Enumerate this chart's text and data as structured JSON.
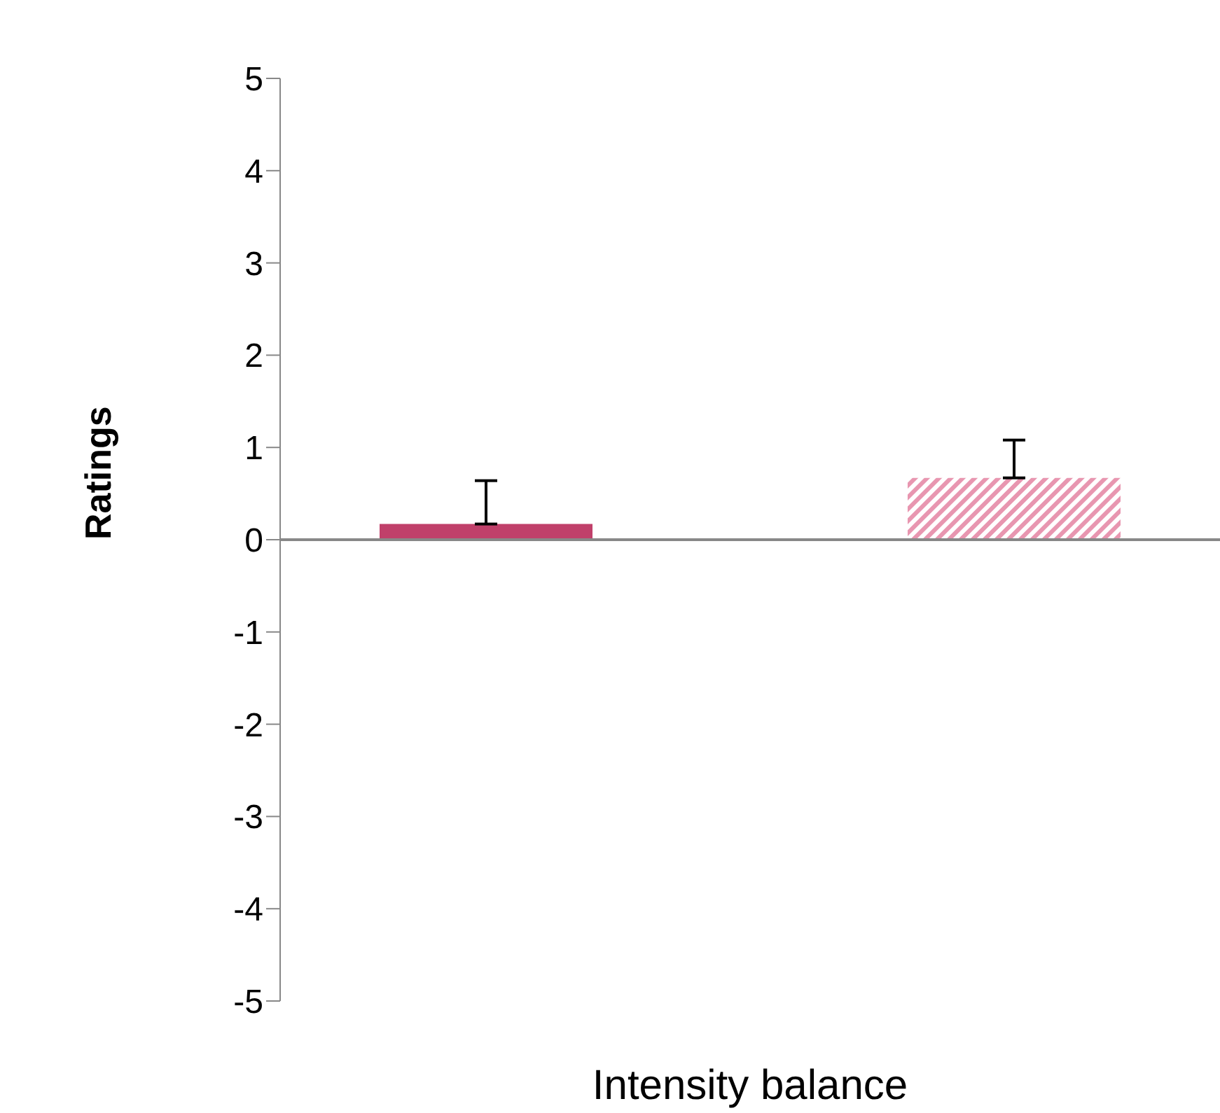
{
  "chart_data": {
    "type": "bar",
    "xlabel": "Intensity balance",
    "ylabel": "Ratings",
    "categories": [
      null
    ],
    "series": [
      {
        "color": "#c0406a",
        "values": [
          0.17
        ],
        "errors": [
          [
            0.17,
            0.64
          ]
        ]
      },
      {
        "color": "#e896b0",
        "values": [
          0.67
        ],
        "errors": [
          [
            0.67,
            1.08
          ]
        ]
      }
    ],
    "ylim": [
      -5,
      5
    ],
    "yticks": [
      -5,
      -4,
      -3,
      -2,
      -1,
      0,
      1,
      2,
      3,
      4,
      5
    ],
    "legend": false
  }
}
